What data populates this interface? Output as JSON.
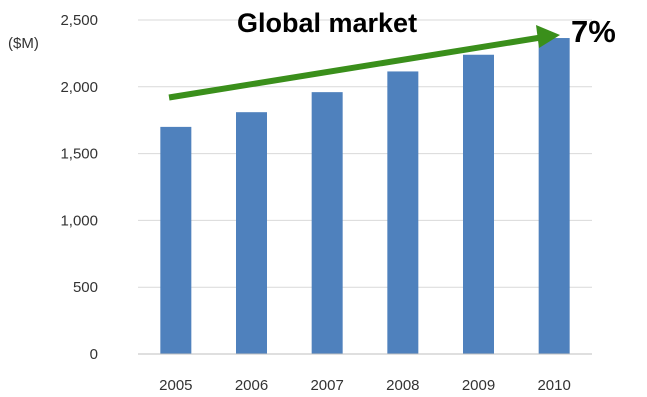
{
  "chart_data": {
    "type": "bar",
    "title": "Global market",
    "unit_label": "($M)",
    "annotation": "7%",
    "categories": [
      "2005",
      "2006",
      "2007",
      "2008",
      "2009",
      "2010"
    ],
    "values": [
      1700,
      1810,
      1960,
      2115,
      2240,
      2365
    ],
    "yticks": [
      0,
      500,
      1000,
      1500,
      2000,
      2500
    ],
    "ytick_labels": [
      "0",
      "500",
      "1,000",
      "1,500",
      "2,000",
      "2,500"
    ],
    "ylim": [
      0,
      2500
    ],
    "grid": true,
    "bar_color": "#4f81bd",
    "trend_arrow_color": "#3a8f1b"
  }
}
